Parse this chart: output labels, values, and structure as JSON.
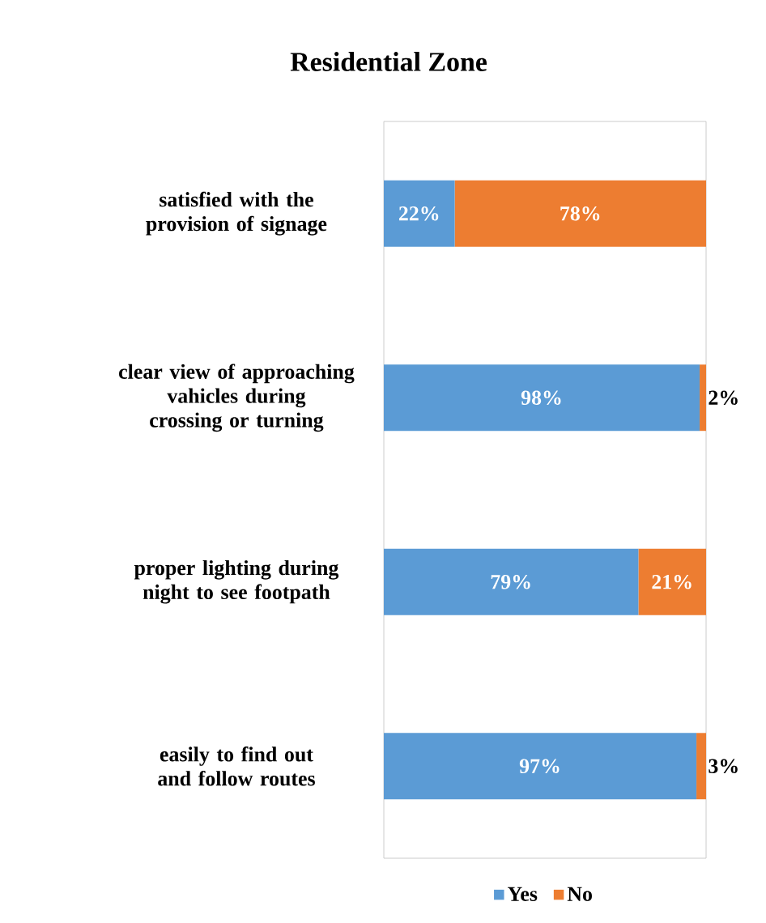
{
  "chart_data": {
    "type": "bar",
    "orientation": "horizontal",
    "stacked": true,
    "title": "Residential Zone",
    "categories": [
      "satisfied with the provision of signage",
      "clear view of approaching vahicles during crossing or turning",
      "proper lighting during night to see footpath",
      "easily to find out and follow routes"
    ],
    "series": [
      {
        "name": "Yes",
        "color": "#5b9bd5",
        "values": [
          22,
          98,
          79,
          97
        ],
        "value_labels": [
          "22%",
          "98%",
          "79%",
          "97%"
        ]
      },
      {
        "name": "No",
        "color": "#ed7d31",
        "values": [
          78,
          2,
          21,
          3
        ],
        "value_labels": [
          "78%",
          "2%",
          "21%",
          "3%"
        ]
      }
    ],
    "legend": "bottom"
  }
}
